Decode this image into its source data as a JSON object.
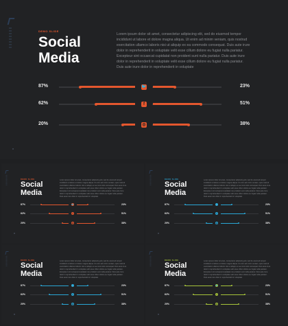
{
  "slide": {
    "kicker": "DEMO SLIDE",
    "title_line1": "Social",
    "title_line2": "Media",
    "paragraph": "Lorem ipsum dolor sit amet, consectetur adipiscing elit, sed do eiusmod tempor incididunt ut labore et dolore magna aliqua. Ut enim ad minim veniam, quis nostrud exercitation ullamco laboris nisi ut aliquip ex ea commodo consequat. Duis aute irure dolor in reprehenderit in voluptate velit esse cillum dolore eu fugiat nulla pariatur. Excepteur sint occaecat cupidatat non proident sunt nulla pariatur. Duis aute irure dolor in reprehenderit in voluptate velit esse cillum dolore eu fugiat nulla pariatur. Duis aute irure dolor in reprehenderit in voluptate",
    "rows": [
      {
        "icon": "twitter-icon",
        "glyph": "🐦",
        "left_label": "87%",
        "right_label": "23%",
        "left_value": 87,
        "right_value": 23
      },
      {
        "icon": "facebook-icon",
        "glyph": "f",
        "left_label": "62%",
        "right_label": "51%",
        "left_value": 62,
        "right_value": 51
      },
      {
        "icon": "instagram-icon",
        "glyph": "◎",
        "left_label": "20%",
        "right_label": "38%",
        "left_value": 20,
        "right_value": 38
      }
    ]
  },
  "themes": {
    "main": {
      "accent": "#e4572e",
      "kicker": "#e4572e"
    },
    "t1": {
      "accent": "#e4572e",
      "kicker": "#e4572e"
    },
    "t2": {
      "accent": "#2aa7d6",
      "kicker": "#2aa7d6"
    },
    "t3": {
      "accent": "#2aa7d6",
      "kicker": "#e4572e"
    },
    "t4": {
      "accent": "#a7c53a",
      "kicker": "#a7c53a"
    }
  }
}
